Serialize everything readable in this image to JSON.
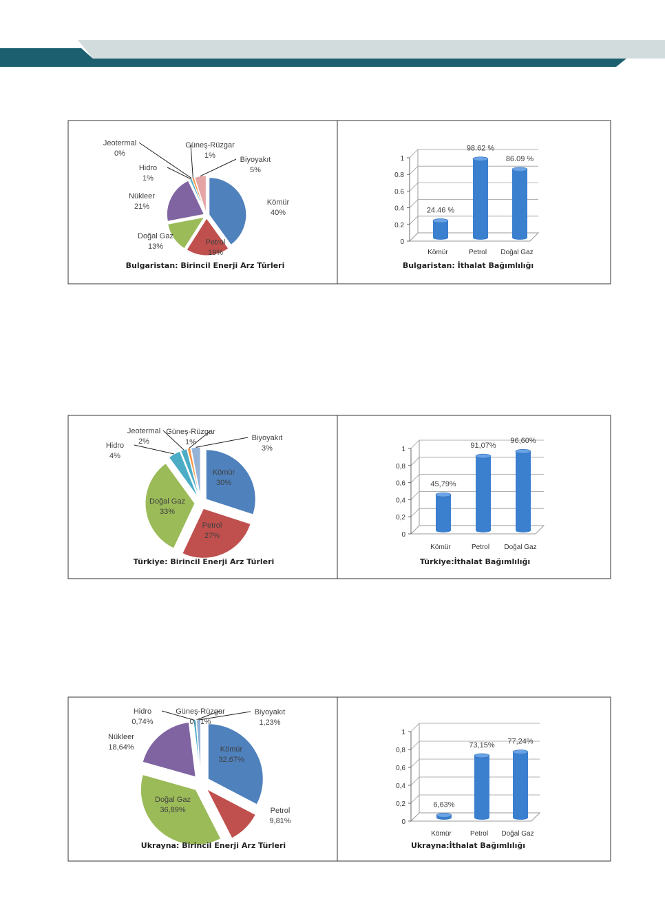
{
  "colors": {
    "header_dark": "#1c5f6e",
    "header_light": "#d3dcdd",
    "komur": "#4f81bd",
    "petrol": "#c0504d",
    "dogalgaz": "#9bbb59",
    "nukleer": "#8064a2",
    "hidro": "#4bacc6",
    "jeotermal": "#4bacc6",
    "gunes": "#f79646",
    "biyoyakit_bg": "#e6a5a5",
    "biyoyakit_tr": "#95b3d7",
    "bar": "#3b7fcf"
  },
  "chart_data": [
    {
      "type": "pie",
      "title": "Bulgaristan: Birincil Enerji Arz Türleri",
      "slices": [
        {
          "name": "Kömür",
          "value": 40,
          "label": "40%"
        },
        {
          "name": "Petrol",
          "value": 19,
          "label": "19%"
        },
        {
          "name": "Doğal Gaz",
          "value": 13,
          "label": "13%"
        },
        {
          "name": "Nükleer",
          "value": 21,
          "label": "21%"
        },
        {
          "name": "Hidro",
          "value": 1,
          "label": "1%"
        },
        {
          "name": "Jeotermal",
          "value": 0,
          "label": "0%"
        },
        {
          "name": "Güneş-Rüzgar",
          "value": 1,
          "label": "1%"
        },
        {
          "name": "Biyoyakıt",
          "value": 5,
          "label": "5%"
        }
      ]
    },
    {
      "type": "bar",
      "title": "Bulgaristan: İthalat Bağımlılığı",
      "categories": [
        "Kömür",
        "Petrol",
        "Doğal Gaz"
      ],
      "values": [
        0.2446,
        0.9862,
        0.8609
      ],
      "data_labels": [
        "24.46 %",
        "98.62 %",
        "86.09 %"
      ],
      "yticks": [
        "0",
        "0.2",
        "0.4",
        "0.6",
        "0.8",
        "1"
      ],
      "ylim": [
        0,
        1
      ]
    },
    {
      "type": "pie",
      "title": "Türkiye: Birincil Enerji Arz Türleri",
      "slices": [
        {
          "name": "Kömür",
          "value": 30,
          "label": "30%"
        },
        {
          "name": "Petrol",
          "value": 27,
          "label": "27%"
        },
        {
          "name": "Doğal Gaz",
          "value": 33,
          "label": "33%"
        },
        {
          "name": "Hidro",
          "value": 4,
          "label": "4%"
        },
        {
          "name": "Jeotermal",
          "value": 2,
          "label": "2%"
        },
        {
          "name": "Güneş-Rüzgar",
          "value": 1,
          "label": "1%"
        },
        {
          "name": "Biyoyakıt",
          "value": 3,
          "label": "3%"
        }
      ]
    },
    {
      "type": "bar",
      "title": "Türkiye:İthalat Bağımlılığı",
      "categories": [
        "Kömür",
        "Petrol",
        "Doğal Gaz"
      ],
      "values": [
        0.4579,
        0.9107,
        0.966
      ],
      "data_labels": [
        "45,79%",
        "91,07%",
        "96,60%"
      ],
      "yticks": [
        "0",
        "0,2",
        "0,4",
        "0,6",
        "0,8",
        "1"
      ],
      "ylim": [
        0,
        1
      ]
    },
    {
      "type": "pie",
      "title": "Ukrayna: Birincil Enerji Arz Türleri",
      "slices": [
        {
          "name": "Kömür",
          "value": 32.67,
          "label": "32,67%"
        },
        {
          "name": "Petrol",
          "value": 9.81,
          "label": "9,81%"
        },
        {
          "name": "Doğal Gaz",
          "value": 36.89,
          "label": "36,89%"
        },
        {
          "name": "Nükleer",
          "value": 18.64,
          "label": "18,64%"
        },
        {
          "name": "Hidro",
          "value": 0.74,
          "label": "0,74%"
        },
        {
          "name": "Güneş-Rüzgar",
          "value": 0.01,
          "label": "0,01%"
        },
        {
          "name": "Biyoyakıt",
          "value": 1.23,
          "label": "1,23%"
        }
      ]
    },
    {
      "type": "bar",
      "title": "Ukrayna:İthalat Bağımlılığı",
      "categories": [
        "Kömür",
        "Petrol",
        "Doğal Gaz"
      ],
      "values": [
        0.0663,
        0.7315,
        0.7724
      ],
      "data_labels": [
        "6,63%",
        "73,15%",
        "77,24%"
      ],
      "yticks": [
        "0",
        "0,2",
        "0,4",
        "0,6",
        "0,8",
        "1"
      ],
      "ylim": [
        0,
        1
      ]
    }
  ]
}
